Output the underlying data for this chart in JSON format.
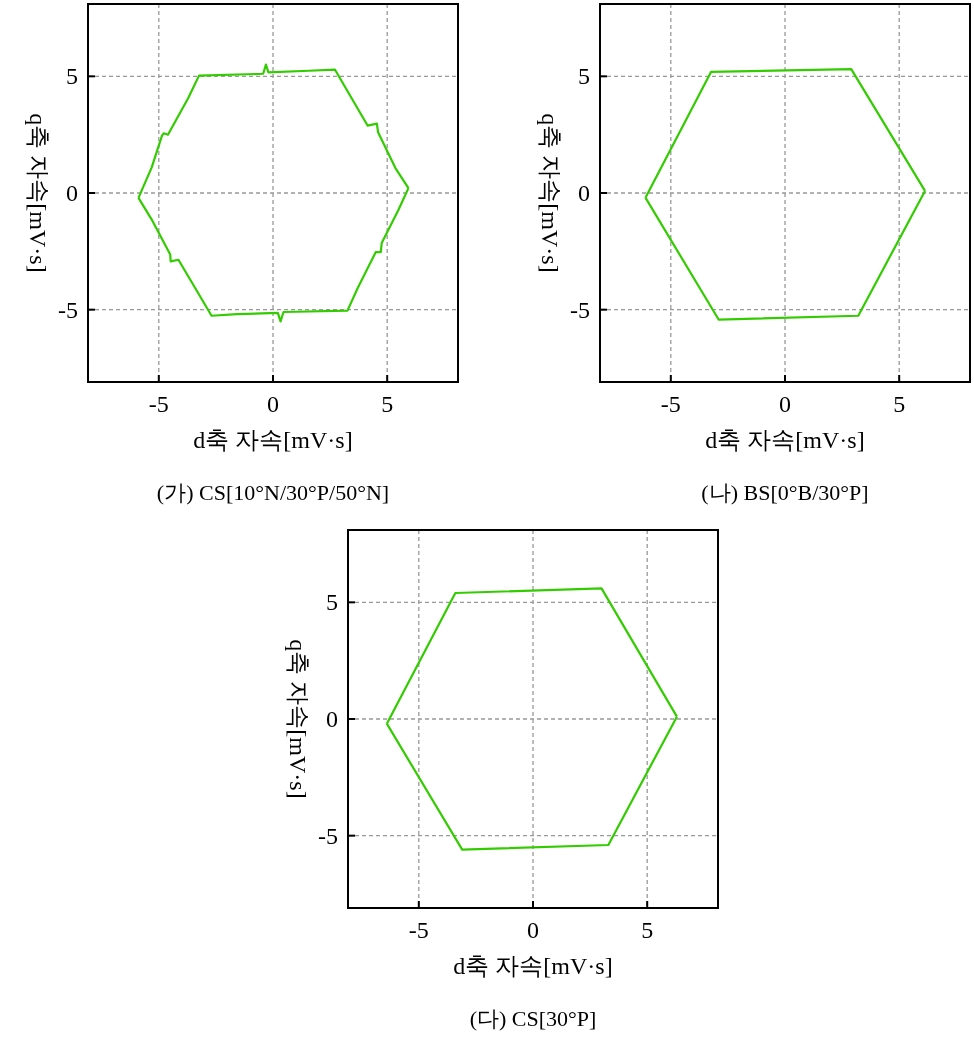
{
  "chart_data": [
    {
      "type": "line",
      "title": "(가) CS[10°N/30°P/50°N]",
      "xlabel": "d축 자속[mV·s]",
      "ylabel": "q축 자속[mV·s]",
      "xlim": [
        -8.1,
        8.1
      ],
      "ylim": [
        -8.1,
        8.1
      ],
      "xticks": [
        -5,
        0,
        5
      ],
      "yticks": [
        -5,
        0,
        5
      ],
      "grid": true,
      "series": [
        {
          "color": "#33cc00",
          "x": [
            -5.89,
            -5.31,
            -4.86,
            -4.78,
            -4.6,
            -3.71,
            -3.24,
            -0.43,
            -0.31,
            -0.2,
            1.57,
            2.71,
            4.14,
            4.55,
            4.6,
            5.36,
            5.93
          ],
          "values": [
            -0.21,
            1.1,
            2.46,
            2.56,
            2.5,
            4.07,
            5.03,
            5.11,
            5.5,
            5.17,
            5.24,
            5.29,
            2.89,
            2.97,
            2.6,
            1.07,
            0.21
          ]
        },
        {
          "color": "#33cc00",
          "x": [
            -5.89,
            -5.31,
            -4.5,
            -4.48,
            -4.14,
            -2.69,
            -1.57,
            0.21,
            0.33,
            0.46,
            3.26,
            3.71,
            4.5,
            4.72,
            4.76,
            5.5,
            5.93
          ],
          "values": [
            -0.21,
            -1.14,
            -2.64,
            -2.93,
            -2.86,
            -5.26,
            -5.19,
            -5.14,
            -5.5,
            -5.1,
            -5.04,
            -4.07,
            -2.53,
            -2.53,
            -2.14,
            -0.71,
            0.21
          ]
        }
      ]
    },
    {
      "type": "line",
      "title": "(나) BS[0°B/30°P]",
      "xlabel": "d축 자속[mV·s]",
      "ylabel": "q축 자속[mV·s]",
      "xlim": [
        -8.1,
        8.1
      ],
      "ylim": [
        -8.1,
        8.1
      ],
      "xticks": [
        -5,
        0,
        5
      ],
      "yticks": [
        -5,
        0,
        5
      ],
      "grid": true,
      "series": [
        {
          "color": "#33cc00",
          "x": [
            -6.11,
            -3.24,
            2.9,
            6.13
          ],
          "values": [
            -0.2,
            5.19,
            5.31,
            0.09
          ]
        },
        {
          "color": "#33cc00",
          "x": [
            -6.11,
            -2.9,
            3.21,
            6.13
          ],
          "values": [
            -0.2,
            -5.43,
            -5.26,
            0.09
          ]
        }
      ]
    },
    {
      "type": "line",
      "title": "(다) CS[30°P]",
      "xlabel": "d축 자속[mV·s]",
      "ylabel": "q축 자속[mV·s]",
      "xlim": [
        -8.1,
        8.1
      ],
      "ylim": [
        -8.1,
        8.1
      ],
      "xticks": [
        -5,
        0,
        5
      ],
      "yticks": [
        -5,
        0,
        5
      ],
      "grid": true,
      "series": [
        {
          "color": "#33cc00",
          "x": [
            -6.4,
            -3.4,
            3.0,
            6.3
          ],
          "values": [
            -0.2,
            5.4,
            5.6,
            0.1
          ]
        },
        {
          "color": "#33cc00",
          "x": [
            -6.4,
            -3.1,
            3.3,
            6.3
          ],
          "values": [
            -0.2,
            -5.6,
            -5.4,
            0.1
          ]
        }
      ]
    }
  ]
}
